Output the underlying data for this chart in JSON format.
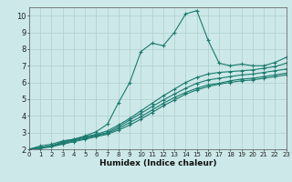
{
  "xlabel": "Humidex (Indice chaleur)",
  "bg_color": "#cce8e8",
  "line_color": "#1a7a6e",
  "xlim": [
    0,
    23
  ],
  "ylim": [
    2,
    10.5
  ],
  "xticks": [
    0,
    1,
    2,
    3,
    4,
    5,
    6,
    7,
    8,
    9,
    10,
    11,
    12,
    13,
    14,
    15,
    16,
    17,
    18,
    19,
    20,
    21,
    22,
    23
  ],
  "yticks": [
    2,
    3,
    4,
    5,
    6,
    7,
    8,
    9,
    10
  ],
  "lines": [
    {
      "x": [
        0,
        1,
        2,
        3,
        4,
        5,
        6,
        7,
        8,
        9,
        10,
        11,
        12,
        13,
        14,
        15,
        16,
        17,
        18,
        19,
        20,
        21,
        22,
        23
      ],
      "y": [
        2.0,
        2.2,
        2.3,
        2.5,
        2.6,
        2.8,
        3.05,
        3.5,
        4.8,
        6.0,
        7.85,
        8.35,
        8.2,
        9.0,
        10.1,
        10.3,
        8.55,
        7.15,
        7.0,
        7.1,
        7.0,
        7.0,
        7.2,
        7.5
      ]
    },
    {
      "x": [
        0,
        1,
        2,
        3,
        4,
        5,
        6,
        7,
        8,
        9,
        10,
        11,
        12,
        13,
        14,
        15,
        16,
        17,
        18,
        19,
        20,
        21,
        22,
        23
      ],
      "y": [
        2.0,
        2.1,
        2.2,
        2.45,
        2.6,
        2.75,
        2.9,
        3.1,
        3.45,
        3.85,
        4.3,
        4.75,
        5.2,
        5.6,
        6.0,
        6.3,
        6.5,
        6.6,
        6.65,
        6.7,
        6.75,
        6.85,
        6.95,
        7.15
      ]
    },
    {
      "x": [
        0,
        1,
        2,
        3,
        4,
        5,
        6,
        7,
        8,
        9,
        10,
        11,
        12,
        13,
        14,
        15,
        16,
        17,
        18,
        19,
        20,
        21,
        22,
        23
      ],
      "y": [
        2.0,
        2.1,
        2.2,
        2.4,
        2.55,
        2.7,
        2.85,
        3.0,
        3.35,
        3.75,
        4.15,
        4.55,
        4.95,
        5.3,
        5.65,
        5.95,
        6.15,
        6.25,
        6.35,
        6.45,
        6.5,
        6.6,
        6.7,
        6.8
      ]
    },
    {
      "x": [
        0,
        1,
        2,
        3,
        4,
        5,
        6,
        7,
        8,
        9,
        10,
        11,
        12,
        13,
        14,
        15,
        16,
        17,
        18,
        19,
        20,
        21,
        22,
        23
      ],
      "y": [
        2.0,
        2.1,
        2.2,
        2.35,
        2.5,
        2.65,
        2.8,
        2.95,
        3.25,
        3.6,
        3.95,
        4.35,
        4.75,
        5.1,
        5.4,
        5.65,
        5.85,
        5.95,
        6.1,
        6.2,
        6.25,
        6.35,
        6.45,
        6.55
      ]
    },
    {
      "x": [
        0,
        1,
        2,
        3,
        4,
        5,
        6,
        7,
        8,
        9,
        10,
        11,
        12,
        13,
        14,
        15,
        16,
        17,
        18,
        19,
        20,
        21,
        22,
        23
      ],
      "y": [
        2.0,
        2.05,
        2.15,
        2.3,
        2.45,
        2.6,
        2.75,
        2.9,
        3.15,
        3.45,
        3.8,
        4.2,
        4.6,
        4.95,
        5.3,
        5.55,
        5.75,
        5.9,
        6.0,
        6.1,
        6.15,
        6.25,
        6.35,
        6.45
      ]
    }
  ],
  "grid_color": "#b0cfcf",
  "marker": "+",
  "markersize": 3.5,
  "linewidth": 0.8
}
